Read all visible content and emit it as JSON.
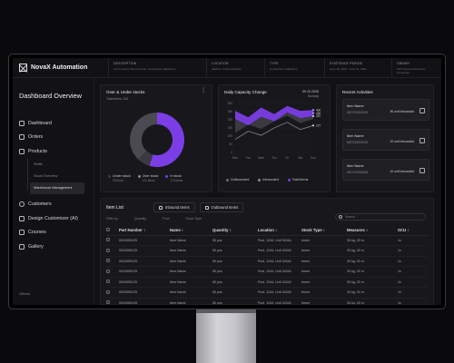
{
  "app": {
    "brand": "NovaX Automation"
  },
  "meta": [
    {
      "key": "DESCRIPTION",
      "value": "Lorem ipsum dolor sit amet, consectetur adipiscing..."
    },
    {
      "key": "LOCATION",
      "value": "Jakarta • Indonesia/Asia"
    },
    {
      "key": "TYPE",
      "value": "Consectetur Adipiscing"
    },
    {
      "key": "EXISTENCE PERIOD",
      "value": "June 18, 2021 - June 21, 2021"
    },
    {
      "key": "OWNER",
      "value": "DOT Gina de Deveroux Tercepture"
    }
  ],
  "sidebar": {
    "title": "Dashboard Overview",
    "items": [
      {
        "label": "Dashboard",
        "icon": "grid-icon"
      },
      {
        "label": "Orders",
        "icon": "box-icon"
      },
      {
        "label": "Products",
        "icon": "tag-icon"
      }
    ],
    "subitems": [
      "Stuffs",
      "Stock Overview",
      "Warehouse Management"
    ],
    "items2": [
      {
        "label": "Customers",
        "icon": "users-icon"
      },
      {
        "label": "Design Customizer (AI)",
        "icon": "palette-icon"
      },
      {
        "label": "Courses",
        "icon": "book-icon"
      },
      {
        "label": "Gallery",
        "icon": "image-icon"
      }
    ],
    "bottom": "Others"
  },
  "donut_card": {
    "title": "Over & Under stocks",
    "subtitle": "Total items: 321",
    "legend": [
      {
        "label": "Under stock",
        "count": "25 items",
        "color": "#3a3a40"
      },
      {
        "label": "Over stock",
        "count": "121 items",
        "color": "#8a8a92"
      },
      {
        "label": "In stock",
        "count": "175 items",
        "color": "#7b3ee6"
      }
    ]
  },
  "capacity_card": {
    "title": "Daily Capacity Change",
    "date": "09.10.2025",
    "day": "Sunday",
    "legend": [
      {
        "label": "Outbounded",
        "color": "#6a6a72"
      },
      {
        "label": "Inbounded",
        "color": "#8a8a92"
      },
      {
        "label": "Total items",
        "color": "#7b3ee6"
      }
    ]
  },
  "chart_data": [
    {
      "type": "pie",
      "title": "Over & Under stocks",
      "categories": [
        "Under stock",
        "Over stock",
        "In stock"
      ],
      "values": [
        25,
        121,
        175
      ],
      "colors": [
        "#3a3a40",
        "#4a4a52",
        "#7b3ee6"
      ]
    },
    {
      "type": "area",
      "title": "Daily Capacity Change",
      "categories": [
        "Mon",
        "Tue",
        "Wed",
        "Thu",
        "Fri",
        "Sat",
        "Sun"
      ],
      "yticks": [
        0,
        50,
        100,
        150,
        200,
        250,
        300
      ],
      "ylim": [
        0,
        300
      ],
      "series": [
        {
          "name": "Total items",
          "values": [
            255,
            215,
            275,
            235,
            285,
            255,
            260
          ],
          "color": "#7b3ee6"
        },
        {
          "name": "Inbounded",
          "values": [
            205,
            165,
            218,
            190,
            245,
            210,
            222
          ],
          "color": "#9a9aa2"
        },
        {
          "name": "Outbounded",
          "values": [
            80,
            130,
            105,
            150,
            185,
            140,
            165
          ],
          "color": "#7a7a82"
        }
      ],
      "end_labels": [
        "400",
        "450",
        "287",
        "227"
      ]
    }
  ],
  "activities": {
    "title": "Recent Activities",
    "items": [
      {
        "name": "Item Name",
        "id": "6307201930015",
        "status": "90 unit Inbounded"
      },
      {
        "name": "Item Name",
        "id": "6307201930015",
        "status": "10 unit Inbounded"
      },
      {
        "name": "Item Name",
        "id": "6307201930015",
        "status": "10 unit Inbounded"
      }
    ]
  },
  "itemlist": {
    "title": "Item List",
    "tabs": [
      "Inbound Items",
      "Outbound Items"
    ],
    "filters": [
      "Filter by",
      "Quantity",
      "Pool",
      "Stock Type"
    ],
    "search_placeholder": "Search",
    "columns": [
      "Part Number ↕",
      "Name ↕",
      "Quantity ↕",
      "Location ↕",
      "Stock Type ↕",
      "Measures ↕",
      "SCU ↕"
    ],
    "rows": [
      [
        "0024990125",
        "Item Name",
        "50 pcs",
        "Pool, 1244, Unit 32444",
        "bmrm",
        "30 kg, 20 m",
        "1x"
      ],
      [
        "0024990125",
        "Item Name",
        "50 pcs",
        "Pool, 1244, Unit 32444",
        "bmrm",
        "30 kg, 20 m",
        "1x"
      ],
      [
        "0024990125",
        "Item Name",
        "50 pcs",
        "Pool, 1244, Unit 32444",
        "bmrm",
        "30 kg, 20 m",
        "1x"
      ],
      [
        "0024990125",
        "Item Name",
        "50 pcs",
        "Pool, 1244, Unit 32444",
        "bmrm",
        "30 kg, 20 m",
        "1x"
      ],
      [
        "0024990125",
        "Item Name",
        "50 pcs",
        "Pool, 1244, Unit 32444",
        "bmrm",
        "30 kg, 20 m",
        "1x"
      ],
      [
        "0024990125",
        "Item Name",
        "50 pcs",
        "Pool, 1244, Unit 32444",
        "bmrm",
        "30 kg, 20 m",
        "1x"
      ],
      [
        "0024990125",
        "Item Name",
        "50 pcs",
        "Pool, 1244, Unit 32444",
        "bmrm",
        "30 kg, 20 m",
        "1x"
      ]
    ]
  }
}
